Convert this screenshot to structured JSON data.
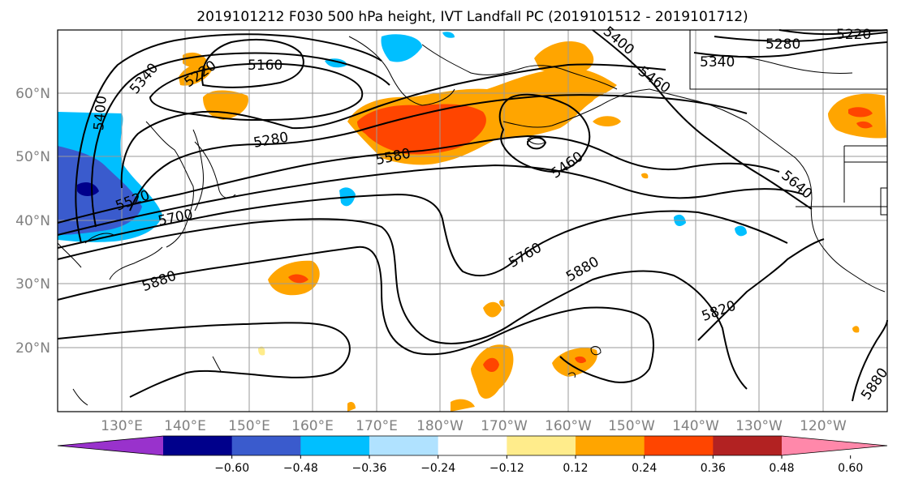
{
  "title": "2019101212 F030 500 hPa height, IVT Landfall PC (2019101512 - 2019101712)",
  "lat_labels": [
    "60°N",
    "50°N",
    "40°N",
    "30°N",
    "20°N"
  ],
  "lon_labels": [
    "130°E",
    "140°E",
    "150°E",
    "160°E",
    "170°E",
    "180°W",
    "170°W",
    "160°W",
    "150°W",
    "140°W",
    "130°W",
    "120°W"
  ],
  "colorbar": {
    "colors": [
      "#9932cc",
      "#00008b",
      "#3a5bcd",
      "#00bfff",
      "#b0e2ff",
      "#ffffff",
      "#ffec8b",
      "#ffa500",
      "#ff4500",
      "#b22222",
      "#ff88aa"
    ],
    "tick_labels": [
      "−0.60",
      "−0.48",
      "−0.36",
      "−0.24",
      "−0.12",
      "0.12",
      "0.24",
      "0.36",
      "0.48",
      "0.60"
    ]
  },
  "contour_labels": [
    "5340",
    "5160",
    "5220",
    "5400",
    "5280",
    "5580",
    "5460",
    "5520",
    "5700",
    "5880",
    "5760",
    "5880",
    "5640",
    "5820",
    "5880",
    "5460",
    "5400",
    "5340",
    "5280",
    "5220"
  ],
  "colors": {
    "grid": "#9a9a9a",
    "label_gray": "#808080"
  }
}
